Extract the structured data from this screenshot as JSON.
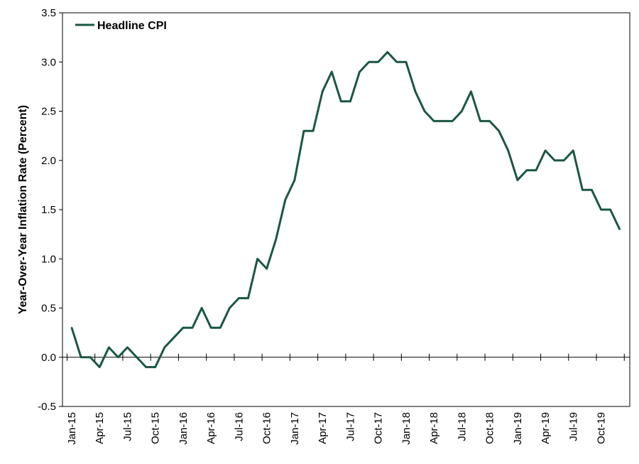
{
  "chart_data": {
    "type": "line",
    "ylabel": "Year-Over-Year Inflation Rate (Percent)",
    "xlabel": "",
    "ylim": [
      -0.5,
      3.5
    ],
    "yticks": [
      "-0.5",
      "0.0",
      "0.5",
      "1.0",
      "1.5",
      "2.0",
      "2.5",
      "3.0",
      "3.5"
    ],
    "x_tick_labels": [
      "Jan-15",
      "Apr-15",
      "Jul-15",
      "Oct-15",
      "Jan-16",
      "Apr-16",
      "Jul-16",
      "Oct-16",
      "Jan-17",
      "Apr-17",
      "Jul-17",
      "Oct-17",
      "Jan-18",
      "Apr-18",
      "Jul-18",
      "Oct-18",
      "Jan-19",
      "Apr-19",
      "Jul-19",
      "Oct-19"
    ],
    "legend": {
      "position": "top-left"
    },
    "grid": false,
    "x": [
      "2015-01",
      "2015-02",
      "2015-03",
      "2015-04",
      "2015-05",
      "2015-06",
      "2015-07",
      "2015-08",
      "2015-09",
      "2015-10",
      "2015-11",
      "2015-12",
      "2016-01",
      "2016-02",
      "2016-03",
      "2016-04",
      "2016-05",
      "2016-06",
      "2016-07",
      "2016-08",
      "2016-09",
      "2016-10",
      "2016-11",
      "2016-12",
      "2017-01",
      "2017-02",
      "2017-03",
      "2017-04",
      "2017-05",
      "2017-06",
      "2017-07",
      "2017-08",
      "2017-09",
      "2017-10",
      "2017-11",
      "2017-12",
      "2018-01",
      "2018-02",
      "2018-03",
      "2018-04",
      "2018-05",
      "2018-06",
      "2018-07",
      "2018-08",
      "2018-09",
      "2018-10",
      "2018-11",
      "2018-12",
      "2019-01",
      "2019-02",
      "2019-03",
      "2019-04",
      "2019-05",
      "2019-06",
      "2019-07",
      "2019-08",
      "2019-09",
      "2019-10",
      "2019-11",
      "2019-12"
    ],
    "series": [
      {
        "name": "Headline CPI",
        "color": "#1a5744",
        "values": [
          0.3,
          0.0,
          0.0,
          -0.1,
          0.1,
          0.0,
          0.1,
          0.0,
          -0.1,
          -0.1,
          0.1,
          0.2,
          0.3,
          0.3,
          0.5,
          0.3,
          0.3,
          0.5,
          0.6,
          0.6,
          1.0,
          0.9,
          1.2,
          1.6,
          1.8,
          2.3,
          2.3,
          2.7,
          2.9,
          2.6,
          2.6,
          2.9,
          3.0,
          3.0,
          3.1,
          3.0,
          3.0,
          2.7,
          2.5,
          2.4,
          2.4,
          2.4,
          2.5,
          2.7,
          2.4,
          2.4,
          2.3,
          2.1,
          1.8,
          1.9,
          1.9,
          2.1,
          2.0,
          2.0,
          2.1,
          1.7,
          1.7,
          1.5,
          1.5,
          1.3
        ]
      }
    ]
  }
}
